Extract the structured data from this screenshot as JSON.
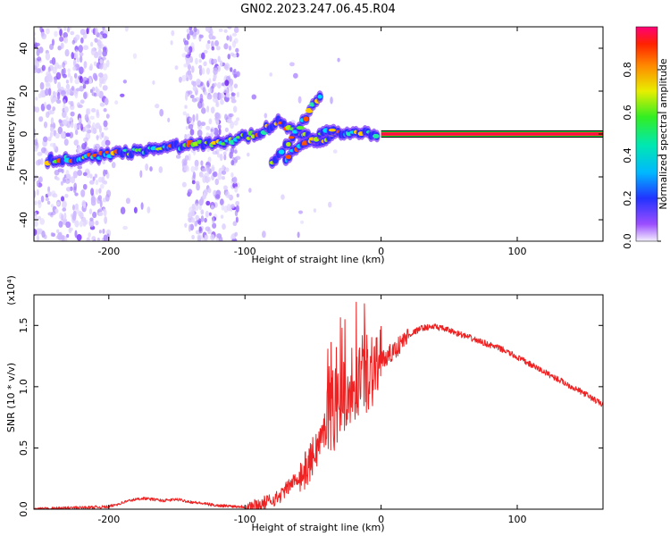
{
  "title": "GN02.2023.247.06.45.R04",
  "chart_data": [
    {
      "type": "heatmap",
      "xlabel": "Height of straight line (km)",
      "ylabel": "Frequency (Hz)",
      "xlim": [
        -255,
        163
      ],
      "ylim": [
        -50,
        50
      ],
      "xticks": [
        -200,
        -100,
        0,
        100
      ],
      "yticks": [
        -40,
        -20,
        0,
        20,
        40
      ],
      "colorbar": {
        "label": "Normalized spectral amplitude",
        "range": [
          0,
          1
        ],
        "ticks": [
          "0.0",
          "0.2",
          "0.4",
          "0.6",
          "0.8"
        ],
        "tick_values": [
          0,
          0.2,
          0.4,
          0.6,
          0.8
        ]
      },
      "ridge": [
        {
          "x": -245,
          "y": -12.5
        },
        {
          "x": -220,
          "y": -11
        },
        {
          "x": -200,
          "y": -9.5
        },
        {
          "x": -170,
          "y": -7.5
        },
        {
          "x": -140,
          "y": -5
        },
        {
          "x": -110,
          "y": -3
        },
        {
          "x": -90,
          "y": 0.5
        },
        {
          "x": -75,
          "y": 6
        },
        {
          "x": -60,
          "y": 0
        },
        {
          "x": -45,
          "y": -4
        },
        {
          "x": -30,
          "y": 1
        },
        {
          "x": -15,
          "y": 0
        },
        {
          "x": 0,
          "y": 0
        },
        {
          "x": 163,
          "y": 0
        }
      ],
      "branch_up": [
        {
          "x": -80,
          "y": -13
        },
        {
          "x": -65,
          "y": -2
        },
        {
          "x": -55,
          "y": 8
        },
        {
          "x": -45,
          "y": 18
        }
      ],
      "branch_down": [
        {
          "x": -70,
          "y": -12
        },
        {
          "x": -60,
          "y": -6
        },
        {
          "x": -45,
          "y": -1
        },
        {
          "x": -35,
          "y": 2
        }
      ]
    },
    {
      "type": "line",
      "xlabel": "Height of straight line (km)",
      "ylabel": "SNR (10 * v/v)",
      "scale_label": "(x10⁴)",
      "xlim": [
        -255,
        163
      ],
      "ylim": [
        0,
        1.75
      ],
      "xticks": [
        -200,
        -100,
        0,
        100
      ],
      "yticks": [
        0.0,
        0.5,
        1.0,
        1.5
      ],
      "yticklabels": [
        "0.0",
        "0.5",
        "1.0",
        "1.5"
      ],
      "series": [
        {
          "color": "#ee2222",
          "x": [
            -255,
            -230,
            -200,
            -185,
            -175,
            -160,
            -150,
            -140,
            -120,
            -100,
            -90,
            -75,
            -65,
            -55,
            -45,
            -38,
            -30,
            -22,
            -15,
            -8,
            0,
            10,
            20,
            30,
            40,
            50,
            70,
            90,
            110,
            130,
            150,
            163
          ],
          "y": [
            0.0,
            0.01,
            0.02,
            0.07,
            0.09,
            0.07,
            0.08,
            0.06,
            0.03,
            0.02,
            0.03,
            0.1,
            0.22,
            0.32,
            0.55,
            0.75,
            0.9,
            1.0,
            1.1,
            1.15,
            1.2,
            1.3,
            1.42,
            1.48,
            1.49,
            1.46,
            1.38,
            1.3,
            1.18,
            1.06,
            0.94,
            0.85
          ]
        }
      ]
    }
  ]
}
